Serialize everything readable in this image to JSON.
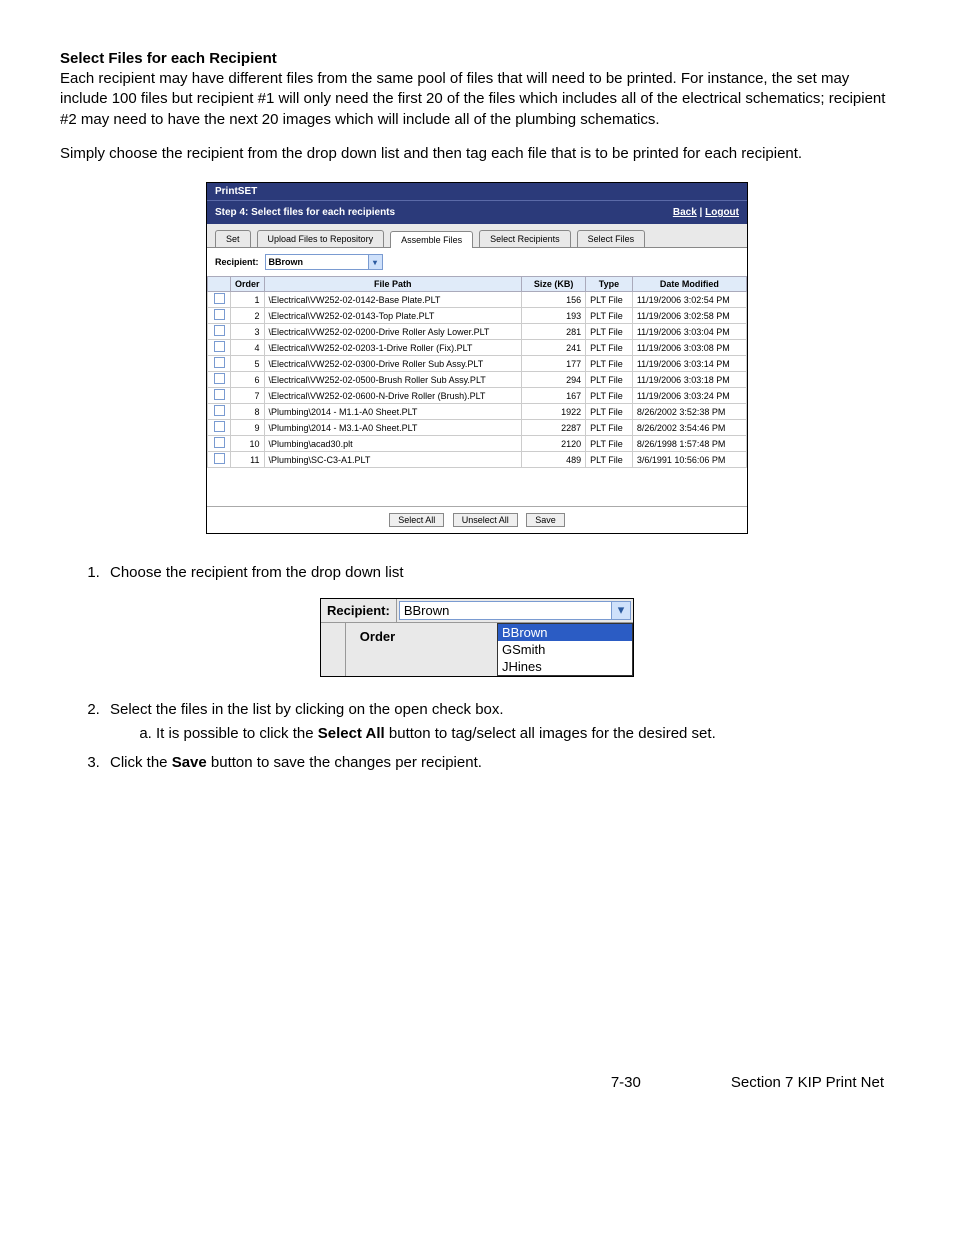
{
  "heading": "Select Files for each Recipient",
  "para1": "Each recipient may have different files from the same pool of files that will need to be printed.  For instance, the set may include 100 files but recipient #1 will only need the first 20 of the files which includes all of the electrical schematics; recipient #2 may need to have the next 20 images which will include all of the plumbing schematics.",
  "para2": "Simply choose the recipient from the drop down list and then tag each file that is to be printed for each recipient.",
  "shot1": {
    "app_title": "PrintSET",
    "step_label": "Step 4: Select files for each recipients",
    "links": {
      "back": "Back",
      "logout": "Logout"
    },
    "tabs": [
      "Set",
      "Upload Files to Repository",
      "Assemble Files",
      "Select Recipients",
      "Select Files"
    ],
    "active_tab_index": 2,
    "recipient_label": "Recipient:",
    "recipient_value": "BBrown",
    "columns": [
      "Order",
      "File Path",
      "Size (KB)",
      "Type",
      "Date Modified"
    ],
    "rows": [
      {
        "order": 1,
        "path": "\\Electrical\\VW252-02-0142-Base Plate.PLT",
        "size": 156,
        "type": "PLT File",
        "date": "11/19/2006 3:02:54 PM"
      },
      {
        "order": 2,
        "path": "\\Electrical\\VW252-02-0143-Top Plate.PLT",
        "size": 193,
        "type": "PLT File",
        "date": "11/19/2006 3:02:58 PM"
      },
      {
        "order": 3,
        "path": "\\Electrical\\VW252-02-0200-Drive Roller Asly Lower.PLT",
        "size": 281,
        "type": "PLT File",
        "date": "11/19/2006 3:03:04 PM"
      },
      {
        "order": 4,
        "path": "\\Electrical\\VW252-02-0203-1-Drive Roller (Fix).PLT",
        "size": 241,
        "type": "PLT File",
        "date": "11/19/2006 3:03:08 PM"
      },
      {
        "order": 5,
        "path": "\\Electrical\\VW252-02-0300-Drive Roller Sub Assy.PLT",
        "size": 177,
        "type": "PLT File",
        "date": "11/19/2006 3:03:14 PM"
      },
      {
        "order": 6,
        "path": "\\Electrical\\VW252-02-0500-Brush Roller Sub Assy.PLT",
        "size": 294,
        "type": "PLT File",
        "date": "11/19/2006 3:03:18 PM"
      },
      {
        "order": 7,
        "path": "\\Electrical\\VW252-02-0600-N-Drive Roller (Brush).PLT",
        "size": 167,
        "type": "PLT File",
        "date": "11/19/2006 3:03:24 PM"
      },
      {
        "order": 8,
        "path": "\\Plumbing\\2014 - M1.1-A0 Sheet.PLT",
        "size": 1922,
        "type": "PLT File",
        "date": "8/26/2002 3:52:38 PM"
      },
      {
        "order": 9,
        "path": "\\Plumbing\\2014 - M3.1-A0 Sheet.PLT",
        "size": 2287,
        "type": "PLT File",
        "date": "8/26/2002 3:54:46 PM"
      },
      {
        "order": 10,
        "path": "\\Plumbing\\acad30.plt",
        "size": 2120,
        "type": "PLT File",
        "date": "8/26/1998 1:57:48 PM"
      },
      {
        "order": 11,
        "path": "\\Plumbing\\SC-C3-A1.PLT",
        "size": 489,
        "type": "PLT File",
        "date": "3/6/1991 10:56:06 PM"
      }
    ],
    "buttons": {
      "select_all": "Select All",
      "unselect_all": "Unselect All",
      "save": "Save"
    }
  },
  "list": {
    "item1": "Choose the recipient from the drop down list",
    "item2": "Select the files in the list by clicking on the open check box.",
    "item2a_pre": "It is possible to click the ",
    "item2a_bold": "Select All",
    "item2a_post": " button to tag/select all images for the desired set.",
    "item3_pre": "Click the ",
    "item3_bold": "Save",
    "item3_post": " button to save the changes per recipient."
  },
  "shot2": {
    "recipient_label": "Recipient:",
    "selected": "BBrown",
    "options": [
      "BBrown",
      "GSmith",
      "JHines"
    ],
    "order_label": "Order"
  },
  "footer": {
    "page": "7-30",
    "section": "Section 7   KIP Print Net"
  }
}
